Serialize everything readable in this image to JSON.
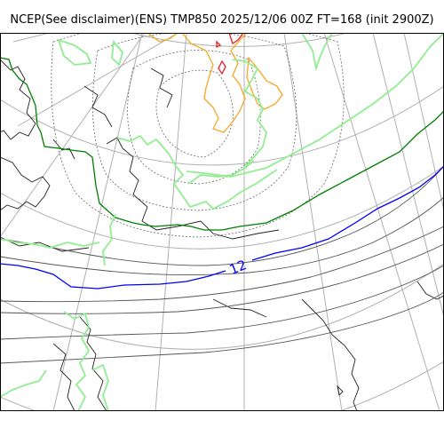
{
  "title": "NCEP(See disclaimer)(ENS) TMP850 2025/12/06 00Z FT=168 (init 2900Z)",
  "map": {
    "projection": "polar-stereographic",
    "contour_label": "12",
    "colors": {
      "graticule": "#b0b0b0",
      "coastline": "#000000",
      "isotherm_thin": "#555555",
      "isotherm_0C": "#008000",
      "isotherm_12C": "#0000ff",
      "warm_orange": "#f5a623",
      "warm_red": "#e02020",
      "cold_light_green": "#90ee90"
    }
  }
}
